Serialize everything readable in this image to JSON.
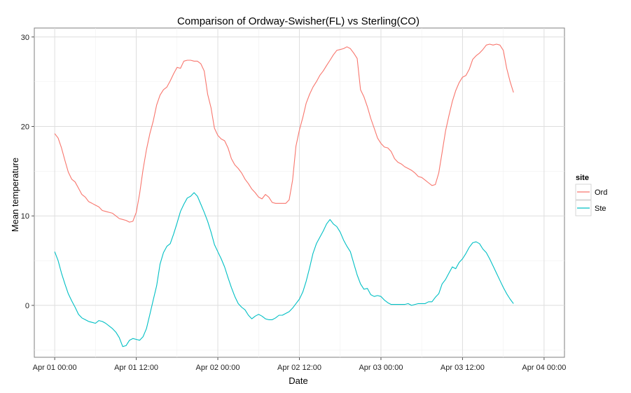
{
  "chart_data": {
    "type": "line",
    "title": "Comparison of Ordway-Swisher(FL) vs Sterling(CO)",
    "xlabel": "Date",
    "ylabel": "Mean temperature",
    "x_unit": "hours from Apr 01 00:00",
    "xlim": [
      -3,
      75
    ],
    "ylim": [
      -5.8,
      31
    ],
    "x_ticks": [
      {
        "x": 0,
        "label": "Apr 01 00:00"
      },
      {
        "x": 12,
        "label": "Apr 01 12:00"
      },
      {
        "x": 24,
        "label": "Apr 02 00:00"
      },
      {
        "x": 36,
        "label": "Apr 02 12:00"
      },
      {
        "x": 48,
        "label": "Apr 03 00:00"
      },
      {
        "x": 60,
        "label": "Apr 03 12:00"
      },
      {
        "x": 72,
        "label": "Apr 04 00:00"
      }
    ],
    "y_ticks": [
      0,
      10,
      20,
      30
    ],
    "grid": true,
    "legend": {
      "title": "site",
      "position": "right"
    },
    "series": [
      {
        "name": "Ord",
        "color": "#F8766D",
        "points": [
          [
            0,
            19.2
          ],
          [
            0.5,
            18.7
          ],
          [
            1,
            17.6
          ],
          [
            1.5,
            16.2
          ],
          [
            2,
            14.9
          ],
          [
            2.5,
            14.1
          ],
          [
            3,
            13.8
          ],
          [
            3.5,
            13.1
          ],
          [
            4,
            12.4
          ],
          [
            4.5,
            12.1
          ],
          [
            5,
            11.6
          ],
          [
            5.5,
            11.4
          ],
          [
            6,
            11.2
          ],
          [
            6.5,
            11.0
          ],
          [
            7,
            10.6
          ],
          [
            7.5,
            10.5
          ],
          [
            8,
            10.4
          ],
          [
            8.5,
            10.3
          ],
          [
            9,
            10.0
          ],
          [
            9.5,
            9.7
          ],
          [
            10,
            9.6
          ],
          [
            10.5,
            9.5
          ],
          [
            11,
            9.3
          ],
          [
            11.5,
            9.4
          ],
          [
            12,
            10.4
          ],
          [
            12.5,
            12.5
          ],
          [
            13,
            15.2
          ],
          [
            13.5,
            17.4
          ],
          [
            14,
            19.2
          ],
          [
            14.5,
            20.6
          ],
          [
            15,
            22.4
          ],
          [
            15.5,
            23.5
          ],
          [
            16,
            24.1
          ],
          [
            16.5,
            24.4
          ],
          [
            17,
            25.1
          ],
          [
            17.5,
            25.9
          ],
          [
            18,
            26.6
          ],
          [
            18.5,
            26.5
          ],
          [
            19,
            27.3
          ],
          [
            19.5,
            27.4
          ],
          [
            20,
            27.4
          ],
          [
            20.5,
            27.3
          ],
          [
            21,
            27.3
          ],
          [
            21.5,
            27.0
          ],
          [
            22,
            26.2
          ],
          [
            22.5,
            23.6
          ],
          [
            23,
            22.1
          ],
          [
            23.5,
            19.8
          ],
          [
            24,
            19.0
          ],
          [
            24.5,
            18.6
          ],
          [
            25,
            18.4
          ],
          [
            25.5,
            17.6
          ],
          [
            26,
            16.4
          ],
          [
            26.5,
            15.7
          ],
          [
            27,
            15.3
          ],
          [
            27.5,
            14.8
          ],
          [
            28,
            14.1
          ],
          [
            28.5,
            13.6
          ],
          [
            29,
            13.0
          ],
          [
            29.5,
            12.6
          ],
          [
            30,
            12.1
          ],
          [
            30.5,
            11.9
          ],
          [
            31,
            12.4
          ],
          [
            31.5,
            12.1
          ],
          [
            32,
            11.5
          ],
          [
            32.5,
            11.4
          ],
          [
            33,
            11.4
          ],
          [
            33.5,
            11.4
          ],
          [
            34,
            11.4
          ],
          [
            34.5,
            11.8
          ],
          [
            35,
            14.0
          ],
          [
            35.5,
            17.8
          ],
          [
            36,
            19.6
          ],
          [
            36.5,
            21.0
          ],
          [
            37,
            22.6
          ],
          [
            37.5,
            23.6
          ],
          [
            38,
            24.4
          ],
          [
            38.5,
            25.0
          ],
          [
            39,
            25.7
          ],
          [
            39.5,
            26.2
          ],
          [
            40,
            26.8
          ],
          [
            40.5,
            27.4
          ],
          [
            41,
            28.0
          ],
          [
            41.5,
            28.5
          ],
          [
            42,
            28.6
          ],
          [
            42.5,
            28.7
          ],
          [
            43,
            28.9
          ],
          [
            43.5,
            28.7
          ],
          [
            44,
            28.2
          ],
          [
            44.5,
            27.6
          ],
          [
            45,
            24.1
          ],
          [
            45.5,
            23.3
          ],
          [
            46,
            22.2
          ],
          [
            46.5,
            20.9
          ],
          [
            47,
            19.8
          ],
          [
            47.5,
            18.7
          ],
          [
            48,
            18.1
          ],
          [
            48.5,
            17.7
          ],
          [
            49,
            17.6
          ],
          [
            49.5,
            17.2
          ],
          [
            50,
            16.4
          ],
          [
            50.5,
            16.0
          ],
          [
            51,
            15.8
          ],
          [
            51.5,
            15.5
          ],
          [
            52,
            15.3
          ],
          [
            52.5,
            15.1
          ],
          [
            53,
            14.8
          ],
          [
            53.5,
            14.4
          ],
          [
            54,
            14.3
          ],
          [
            54.5,
            14.0
          ],
          [
            55,
            13.7
          ],
          [
            55.5,
            13.4
          ],
          [
            56,
            13.5
          ],
          [
            56.5,
            14.8
          ],
          [
            57,
            17.1
          ],
          [
            57.5,
            19.5
          ],
          [
            58,
            21.2
          ],
          [
            58.5,
            22.8
          ],
          [
            59,
            24.0
          ],
          [
            59.5,
            24.9
          ],
          [
            60,
            25.5
          ],
          [
            60.5,
            25.7
          ],
          [
            61,
            26.4
          ],
          [
            61.5,
            27.5
          ],
          [
            62,
            27.9
          ],
          [
            62.5,
            28.2
          ],
          [
            63,
            28.6
          ],
          [
            63.5,
            29.1
          ],
          [
            64,
            29.2
          ],
          [
            64.5,
            29.1
          ],
          [
            65,
            29.2
          ],
          [
            65.5,
            29.1
          ],
          [
            66,
            28.5
          ],
          [
            66.5,
            26.5
          ],
          [
            67,
            25.0
          ],
          [
            67.5,
            23.8
          ]
        ]
      },
      {
        "name": "Ste",
        "color": "#00BFC4",
        "points": [
          [
            0,
            6.0
          ],
          [
            0.5,
            5.0
          ],
          [
            1,
            3.6
          ],
          [
            1.5,
            2.4
          ],
          [
            2,
            1.3
          ],
          [
            2.5,
            0.5
          ],
          [
            3,
            -0.2
          ],
          [
            3.5,
            -1.0
          ],
          [
            4,
            -1.4
          ],
          [
            4.5,
            -1.6
          ],
          [
            5,
            -1.8
          ],
          [
            5.5,
            -1.9
          ],
          [
            6,
            -2.0
          ],
          [
            6.5,
            -1.7
          ],
          [
            7,
            -1.8
          ],
          [
            7.5,
            -2.0
          ],
          [
            8,
            -2.3
          ],
          [
            8.5,
            -2.6
          ],
          [
            9,
            -3.0
          ],
          [
            9.5,
            -3.6
          ],
          [
            10,
            -4.6
          ],
          [
            10.5,
            -4.5
          ],
          [
            11,
            -3.9
          ],
          [
            11.5,
            -3.7
          ],
          [
            12,
            -3.8
          ],
          [
            12.5,
            -3.9
          ],
          [
            13,
            -3.5
          ],
          [
            13.5,
            -2.6
          ],
          [
            14,
            -1.0
          ],
          [
            14.5,
            0.6
          ],
          [
            15,
            2.2
          ],
          [
            15.5,
            4.6
          ],
          [
            16,
            5.9
          ],
          [
            16.5,
            6.6
          ],
          [
            17,
            6.9
          ],
          [
            17.5,
            8.0
          ],
          [
            18,
            9.2
          ],
          [
            18.5,
            10.5
          ],
          [
            19,
            11.3
          ],
          [
            19.5,
            12.0
          ],
          [
            20,
            12.2
          ],
          [
            20.5,
            12.6
          ],
          [
            21,
            12.2
          ],
          [
            21.5,
            11.3
          ],
          [
            22,
            10.4
          ],
          [
            22.5,
            9.4
          ],
          [
            23,
            8.2
          ],
          [
            23.5,
            6.8
          ],
          [
            24,
            6.0
          ],
          [
            24.5,
            5.2
          ],
          [
            25,
            4.3
          ],
          [
            25.5,
            3.1
          ],
          [
            26,
            2.0
          ],
          [
            26.5,
            1.0
          ],
          [
            27,
            0.2
          ],
          [
            27.5,
            -0.2
          ],
          [
            28,
            -0.5
          ],
          [
            28.5,
            -1.1
          ],
          [
            29,
            -1.5
          ],
          [
            29.5,
            -1.2
          ],
          [
            30,
            -1.0
          ],
          [
            30.5,
            -1.2
          ],
          [
            31,
            -1.5
          ],
          [
            31.5,
            -1.6
          ],
          [
            32,
            -1.6
          ],
          [
            32.5,
            -1.4
          ],
          [
            33,
            -1.1
          ],
          [
            33.5,
            -1.1
          ],
          [
            34,
            -0.9
          ],
          [
            34.5,
            -0.7
          ],
          [
            35,
            -0.3
          ],
          [
            35.5,
            0.2
          ],
          [
            36,
            0.7
          ],
          [
            36.5,
            1.5
          ],
          [
            37,
            2.7
          ],
          [
            37.5,
            4.2
          ],
          [
            38,
            5.8
          ],
          [
            38.5,
            6.9
          ],
          [
            39,
            7.6
          ],
          [
            39.5,
            8.3
          ],
          [
            40,
            9.1
          ],
          [
            40.5,
            9.6
          ],
          [
            41,
            9.1
          ],
          [
            41.5,
            8.8
          ],
          [
            42,
            8.2
          ],
          [
            42.5,
            7.3
          ],
          [
            43,
            6.6
          ],
          [
            43.5,
            6.0
          ],
          [
            44,
            4.7
          ],
          [
            44.5,
            3.4
          ],
          [
            45,
            2.4
          ],
          [
            45.5,
            1.8
          ],
          [
            46,
            1.9
          ],
          [
            46.5,
            1.2
          ],
          [
            47,
            1.0
          ],
          [
            47.5,
            1.1
          ],
          [
            48,
            1.0
          ],
          [
            48.5,
            0.6
          ],
          [
            49,
            0.3
          ],
          [
            49.5,
            0.1
          ],
          [
            50,
            0.1
          ],
          [
            50.5,
            0.1
          ],
          [
            51,
            0.1
          ],
          [
            51.5,
            0.1
          ],
          [
            52,
            0.2
          ],
          [
            52.5,
            0.0
          ],
          [
            53,
            0.1
          ],
          [
            53.5,
            0.2
          ],
          [
            54,
            0.2
          ],
          [
            54.5,
            0.2
          ],
          [
            55,
            0.4
          ],
          [
            55.5,
            0.4
          ],
          [
            56,
            0.9
          ],
          [
            56.5,
            1.3
          ],
          [
            57,
            2.4
          ],
          [
            57.5,
            2.9
          ],
          [
            58,
            3.6
          ],
          [
            58.5,
            4.3
          ],
          [
            59,
            4.1
          ],
          [
            59.5,
            4.8
          ],
          [
            60,
            5.2
          ],
          [
            60.5,
            5.8
          ],
          [
            61,
            6.5
          ],
          [
            61.5,
            7.0
          ],
          [
            62,
            7.1
          ],
          [
            62.5,
            6.9
          ],
          [
            63,
            6.3
          ],
          [
            63.5,
            5.9
          ],
          [
            64,
            5.2
          ],
          [
            64.5,
            4.4
          ],
          [
            65,
            3.6
          ],
          [
            65.5,
            2.8
          ],
          [
            66,
            2.0
          ],
          [
            66.5,
            1.3
          ],
          [
            67,
            0.7
          ],
          [
            67.5,
            0.2
          ]
        ]
      }
    ]
  }
}
